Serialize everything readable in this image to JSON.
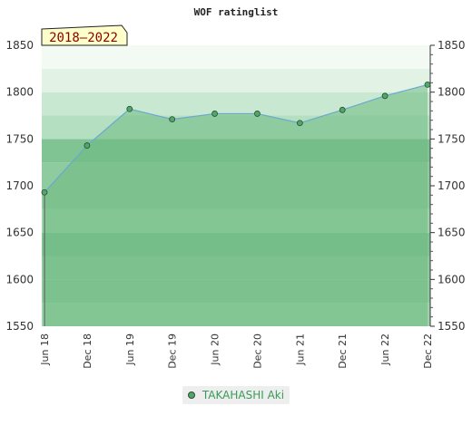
{
  "chart_data": {
    "type": "area",
    "title": "WOF ratinglist",
    "period_label": "2018–2022",
    "categories": [
      "Jun 18",
      "Dec 18",
      "Jun 19",
      "Dec 19",
      "Jun 20",
      "Dec 20",
      "Jun 21",
      "Dec 21",
      "Jun 22",
      "Dec 22"
    ],
    "series": [
      {
        "name": "TAKAHASHI Aki",
        "values": [
          1693,
          1743,
          1782,
          1771,
          1777,
          1777,
          1767,
          1781,
          1796,
          1808
        ]
      }
    ],
    "ylim": [
      1550,
      1850
    ],
    "yticks": [
      1550,
      1600,
      1650,
      1700,
      1750,
      1800,
      1850
    ],
    "xlabel": "",
    "ylabel": "",
    "legend_position": "bottom-center",
    "colors": {
      "area": "#8ecb9e",
      "line": "#6aa8d0",
      "marker": "#4fa86a",
      "title_text": "#222222"
    }
  }
}
